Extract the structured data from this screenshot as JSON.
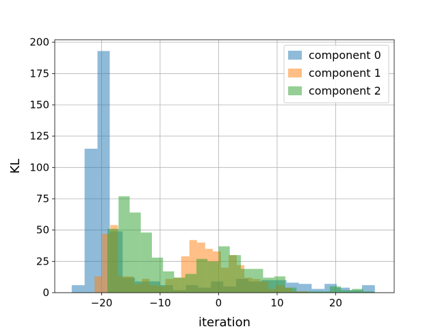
{
  "chart_data": {
    "type": "bar",
    "subtype": "overlapping-histogram",
    "xlabel": "iteration",
    "ylabel": "KL",
    "xlim": [
      -28,
      30
    ],
    "ylim": [
      0,
      202
    ],
    "xticks": [
      -20,
      -10,
      0,
      10,
      20
    ],
    "yticks": [
      0,
      25,
      50,
      75,
      100,
      125,
      150,
      175,
      200
    ],
    "grid": true,
    "legend_position": "top-right",
    "series": [
      {
        "name": "component 0",
        "color": "#1f77b4",
        "opacity": 0.5,
        "bins": [
          {
            "x0": -25.1,
            "x1": -22.9,
            "value": 6
          },
          {
            "x0": -22.9,
            "x1": -20.7,
            "value": 115
          },
          {
            "x0": -20.7,
            "x1": -18.6,
            "value": 193
          },
          {
            "x0": -18.6,
            "x1": -16.4,
            "value": 49
          },
          {
            "x0": -16.4,
            "x1": -14.3,
            "value": 12
          },
          {
            "x0": -14.3,
            "x1": -12.1,
            "value": 9
          },
          {
            "x0": -12.1,
            "x1": -10.0,
            "value": 9
          },
          {
            "x0": -10.0,
            "x1": -7.8,
            "value": 6
          },
          {
            "x0": -7.8,
            "x1": -5.6,
            "value": 2
          },
          {
            "x0": -5.6,
            "x1": -3.5,
            "value": 6
          },
          {
            "x0": -3.5,
            "x1": -1.3,
            "value": 4
          },
          {
            "x0": -1.3,
            "x1": 0.8,
            "value": 9
          },
          {
            "x0": 0.8,
            "x1": 3.0,
            "value": 5
          },
          {
            "x0": 3.0,
            "x1": 5.1,
            "value": 11
          },
          {
            "x0": 5.1,
            "x1": 7.3,
            "value": 9
          },
          {
            "x0": 7.3,
            "x1": 9.4,
            "value": 10
          },
          {
            "x0": 9.4,
            "x1": 11.6,
            "value": 10
          },
          {
            "x0": 11.6,
            "x1": 13.7,
            "value": 8
          },
          {
            "x0": 13.7,
            "x1": 15.9,
            "value": 7
          },
          {
            "x0": 15.9,
            "x1": 18.1,
            "value": 3
          },
          {
            "x0": 18.1,
            "x1": 20.2,
            "value": 7
          },
          {
            "x0": 20.2,
            "x1": 22.4,
            "value": 4
          },
          {
            "x0": 22.4,
            "x1": 24.5,
            "value": 2
          },
          {
            "x0": 24.5,
            "x1": 26.7,
            "value": 6
          }
        ]
      },
      {
        "name": "component 1",
        "color": "#ff7f0e",
        "opacity": 0.5,
        "bins": [
          {
            "x0": -21.2,
            "x1": -19.9,
            "value": 13
          },
          {
            "x0": -19.9,
            "x1": -18.5,
            "value": 47
          },
          {
            "x0": -18.5,
            "x1": -17.2,
            "value": 54
          },
          {
            "x0": -17.2,
            "x1": -15.8,
            "value": 13
          },
          {
            "x0": -15.8,
            "x1": -14.5,
            "value": 13
          },
          {
            "x0": -14.5,
            "x1": -13.1,
            "value": 7
          },
          {
            "x0": -13.1,
            "x1": -11.8,
            "value": 11
          },
          {
            "x0": -11.8,
            "x1": -10.4,
            "value": 6
          },
          {
            "x0": -10.4,
            "x1": -9.1,
            "value": 5
          },
          {
            "x0": -9.1,
            "x1": -7.7,
            "value": 11
          },
          {
            "x0": -7.7,
            "x1": -6.4,
            "value": 12
          },
          {
            "x0": -6.4,
            "x1": -5.0,
            "value": 29
          },
          {
            "x0": -5.0,
            "x1": -3.7,
            "value": 42
          },
          {
            "x0": -3.7,
            "x1": -2.3,
            "value": 40
          },
          {
            "x0": -2.3,
            "x1": -1.0,
            "value": 35
          },
          {
            "x0": -1.0,
            "x1": 0.4,
            "value": 33
          },
          {
            "x0": 0.4,
            "x1": 1.7,
            "value": 20
          },
          {
            "x0": 1.7,
            "x1": 3.1,
            "value": 30
          },
          {
            "x0": 3.1,
            "x1": 4.4,
            "value": 22
          },
          {
            "x0": 4.4,
            "x1": 5.8,
            "value": 12
          },
          {
            "x0": 5.8,
            "x1": 7.1,
            "value": 11
          },
          {
            "x0": 7.1,
            "x1": 8.5,
            "value": 9
          },
          {
            "x0": 8.5,
            "x1": 9.8,
            "value": 3
          },
          {
            "x0": 9.8,
            "x1": 11.2,
            "value": 6
          },
          {
            "x0": 11.2,
            "x1": 12.5,
            "value": 4
          },
          {
            "x0": 12.5,
            "x1": 13.9,
            "value": 1
          },
          {
            "x0": 13.9,
            "x1": 15.2,
            "value": 1
          }
        ]
      },
      {
        "name": "component 2",
        "color": "#2ca02c",
        "opacity": 0.5,
        "bins": [
          {
            "x0": -19.0,
            "x1": -17.1,
            "value": 51
          },
          {
            "x0": -17.1,
            "x1": -15.2,
            "value": 77
          },
          {
            "x0": -15.2,
            "x1": -13.3,
            "value": 64
          },
          {
            "x0": -13.3,
            "x1": -11.4,
            "value": 48
          },
          {
            "x0": -11.4,
            "x1": -9.5,
            "value": 28
          },
          {
            "x0": -9.5,
            "x1": -7.6,
            "value": 17
          },
          {
            "x0": -7.6,
            "x1": -5.7,
            "value": 12
          },
          {
            "x0": -5.7,
            "x1": -3.8,
            "value": 15
          },
          {
            "x0": -3.8,
            "x1": -1.9,
            "value": 27
          },
          {
            "x0": -1.9,
            "x1": 0.0,
            "value": 25
          },
          {
            "x0": 0.0,
            "x1": 1.9,
            "value": 37
          },
          {
            "x0": 1.9,
            "x1": 3.8,
            "value": 30
          },
          {
            "x0": 3.8,
            "x1": 5.7,
            "value": 19
          },
          {
            "x0": 5.7,
            "x1": 7.6,
            "value": 19
          },
          {
            "x0": 7.6,
            "x1": 9.5,
            "value": 12
          },
          {
            "x0": 9.5,
            "x1": 11.4,
            "value": 13
          },
          {
            "x0": 11.4,
            "x1": 13.3,
            "value": 4
          },
          {
            "x0": 13.3,
            "x1": 15.2,
            "value": 1
          },
          {
            "x0": 15.2,
            "x1": 17.1,
            "value": 1
          },
          {
            "x0": 17.1,
            "x1": 19.0,
            "value": 1
          },
          {
            "x0": 19.0,
            "x1": 20.9,
            "value": 5
          },
          {
            "x0": 20.9,
            "x1": 22.8,
            "value": 2
          },
          {
            "x0": 22.8,
            "x1": 24.7,
            "value": 3
          },
          {
            "x0": 24.7,
            "x1": 26.6,
            "value": 1
          }
        ]
      }
    ]
  }
}
